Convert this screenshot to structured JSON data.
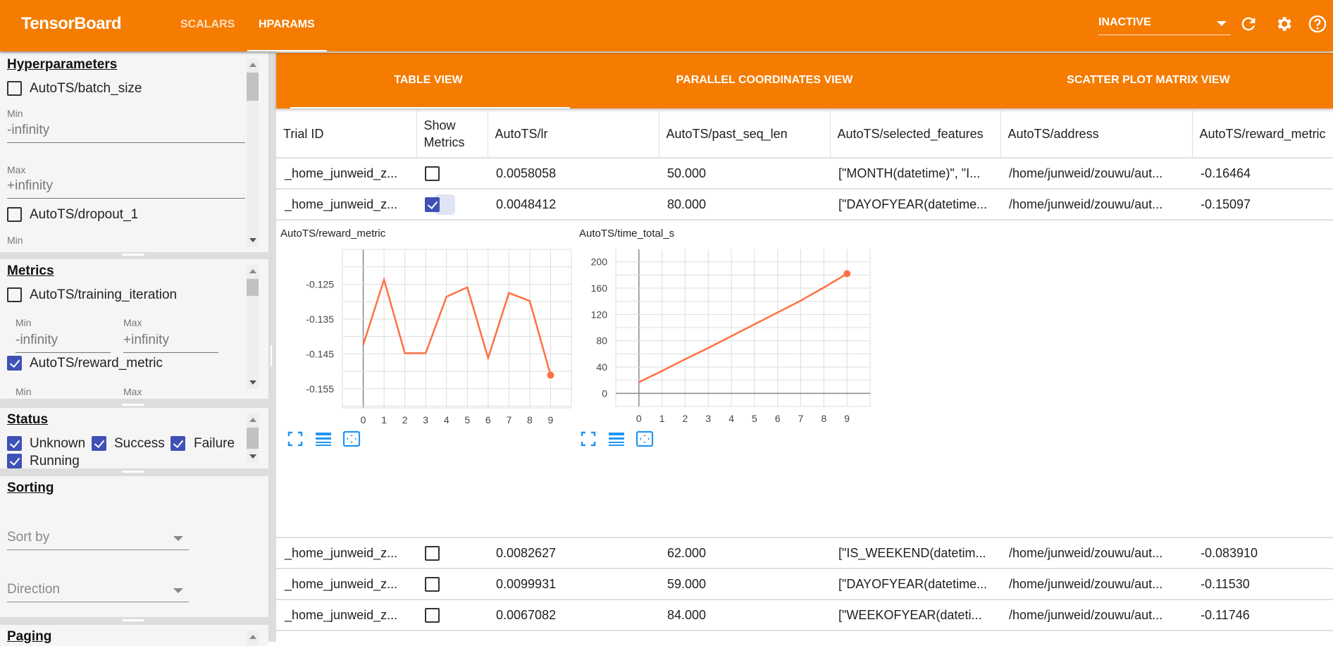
{
  "app": {
    "title": "TensorBoard",
    "nav": [
      {
        "label": "SCALARS",
        "active": false
      },
      {
        "label": "HPARAMS",
        "active": true
      }
    ],
    "run_select": {
      "value": "INACTIVE"
    },
    "icons": [
      "refresh-icon",
      "settings-icon",
      "help-icon"
    ],
    "accent": "#f57c00",
    "check_color": "#3f51b5",
    "series_color": "#ff7043"
  },
  "sidebar": {
    "hyperparameters": {
      "title": "Hyperparameters",
      "items": [
        {
          "label": "AutoTS/batch_size",
          "checked": false,
          "min_label": "Min",
          "min": "-infinity",
          "max_label": "Max",
          "max": "+infinity"
        },
        {
          "label": "AutoTS/dropout_1",
          "checked": false,
          "min_label": "Min"
        }
      ]
    },
    "metrics": {
      "title": "Metrics",
      "items": [
        {
          "label": "AutoTS/training_iteration",
          "checked": false,
          "min_label": "Min",
          "min": "-infinity",
          "max_label": "Max",
          "max": "+infinity"
        },
        {
          "label": "AutoTS/reward_metric",
          "checked": true,
          "min_label": "Min",
          "max_label": "Max"
        }
      ]
    },
    "status": {
      "title": "Status",
      "items": [
        {
          "label": "Unknown",
          "checked": true
        },
        {
          "label": "Success",
          "checked": true
        },
        {
          "label": "Failure",
          "checked": true
        },
        {
          "label": "Running",
          "checked": true
        }
      ]
    },
    "sorting": {
      "title": "Sorting",
      "sort_by": "Sort by",
      "direction": "Direction"
    },
    "paging": {
      "title": "Paging"
    }
  },
  "view_tabs": [
    {
      "label": "TABLE VIEW",
      "active": true
    },
    {
      "label": "PARALLEL COORDINATES VIEW",
      "active": false
    },
    {
      "label": "SCATTER PLOT MATRIX VIEW",
      "active": false
    }
  ],
  "table": {
    "columns": [
      "Trial ID",
      "Show Metrics",
      "AutoTS/lr",
      "AutoTS/past_seq_len",
      "AutoTS/selected_features",
      "AutoTS/address",
      "AutoTS/reward_metric"
    ],
    "rows": [
      {
        "id": "_home_junweid_z...",
        "show": false,
        "lr": "0.0058058",
        "past_seq_len": "50.000",
        "features": "[\"MONTH(datetime)\", \"I...",
        "address": "/home/junweid/zouwu/aut...",
        "reward": "-0.16464"
      },
      {
        "id": "_home_junweid_z...",
        "show": true,
        "lr": "0.0048412",
        "past_seq_len": "80.000",
        "features": "[\"DAYOFYEAR(datetime...",
        "address": "/home/junweid/zouwu/aut...",
        "reward": "-0.15097"
      },
      {
        "id": "_home_junweid_z...",
        "show": false,
        "lr": "0.0082627",
        "past_seq_len": "62.000",
        "features": "[\"IS_WEEKEND(datetim...",
        "address": "/home/junweid/zouwu/aut...",
        "reward": "-0.083910"
      },
      {
        "id": "_home_junweid_z...",
        "show": false,
        "lr": "0.0099931",
        "past_seq_len": "59.000",
        "features": "[\"DAYOFYEAR(datetime...",
        "address": "/home/junweid/zouwu/aut...",
        "reward": "-0.11530"
      },
      {
        "id": "_home_junweid_z...",
        "show": false,
        "lr": "0.0067082",
        "past_seq_len": "84.000",
        "features": "[\"WEEKOFYEAR(dateti...",
        "address": "/home/junweid/zouwu/aut...",
        "reward": "-0.11746"
      }
    ]
  },
  "chart_data": [
    {
      "type": "line",
      "title": "AutoTS/reward_metric",
      "x": [
        0,
        1,
        2,
        3,
        4,
        5,
        6,
        7,
        8,
        9
      ],
      "values": [
        -0.1424,
        -0.1237,
        -0.1448,
        -0.1448,
        -0.1286,
        -0.1259,
        -0.1462,
        -0.1275,
        -0.1298,
        -0.1511
      ],
      "xlim": [
        -1,
        10
      ],
      "ylim": [
        -0.1605,
        -0.115
      ],
      "xticks": [
        "0",
        "1",
        "2",
        "3",
        "4",
        "5",
        "6",
        "7",
        "8",
        "9"
      ],
      "yticks": [
        "-0.125",
        "-0.135",
        "-0.145",
        "-0.155"
      ],
      "grid": true,
      "tool_icons": [
        "fit-expand-icon",
        "data-table-icon",
        "fit-domain-icon"
      ]
    },
    {
      "type": "line",
      "title": "AutoTS/time_total_s",
      "x": [
        0,
        1,
        2,
        3,
        4,
        5,
        6,
        7,
        8,
        9
      ],
      "values": [
        17,
        34,
        52,
        69,
        87,
        105,
        123,
        141,
        161,
        182
      ],
      "xlim": [
        -1,
        10
      ],
      "ylim": [
        -20,
        219
      ],
      "xticks": [
        "0",
        "1",
        "2",
        "3",
        "4",
        "5",
        "6",
        "7",
        "8",
        "9"
      ],
      "yticks": [
        "0",
        "40",
        "80",
        "120",
        "160",
        "200"
      ],
      "grid": true,
      "tool_icons": [
        "fit-expand-icon",
        "data-table-icon",
        "fit-domain-icon"
      ]
    }
  ]
}
